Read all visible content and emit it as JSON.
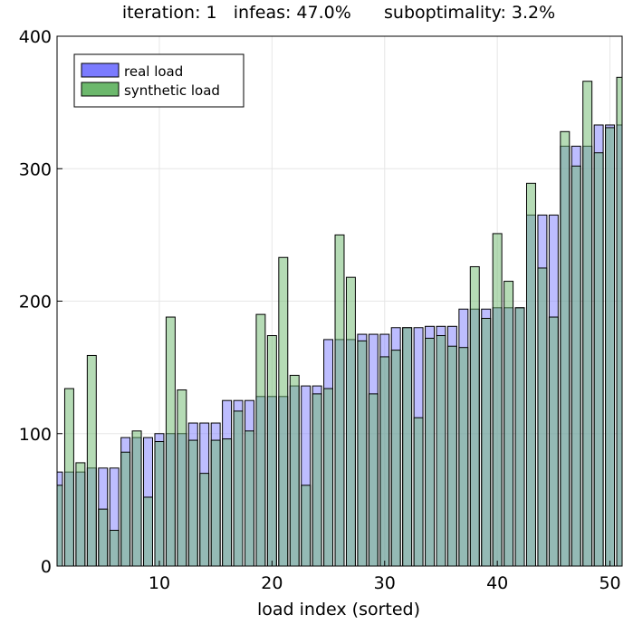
{
  "chart_data": {
    "type": "bar",
    "title": "iteration: 1   infeas: 47.0%      suboptimality: 3.2%",
    "xlabel": "load index (sorted)",
    "ylabel": "",
    "xlim": [
      1,
      51
    ],
    "ylim": [
      0,
      400
    ],
    "xticks": [
      10,
      20,
      30,
      40,
      50
    ],
    "yticks": [
      0,
      100,
      200,
      300,
      400
    ],
    "grid": true,
    "legend_position": "top-left",
    "series": [
      {
        "name": "real load",
        "color": "#7b7bff",
        "values": [
          71,
          71,
          71,
          74,
          74,
          74,
          97,
          97,
          97,
          100,
          100,
          100,
          108,
          108,
          108,
          125,
          125,
          125,
          128,
          128,
          128,
          136,
          136,
          136,
          171,
          171,
          171,
          175,
          175,
          175,
          180,
          180,
          180,
          181,
          181,
          181,
          194,
          194,
          194,
          195,
          195,
          195,
          265,
          265,
          265,
          317,
          317,
          317,
          333,
          333,
          333
        ]
      },
      {
        "name": "synthetic load",
        "color": "#6cb86c",
        "values": [
          61,
          134,
          78,
          159,
          43,
          27,
          86,
          102,
          52,
          94,
          188,
          133,
          95,
          70,
          95,
          96,
          117,
          102,
          190,
          174,
          233,
          144,
          61,
          130,
          134,
          250,
          218,
          170,
          130,
          158,
          163,
          180,
          112,
          172,
          174,
          166,
          165,
          226,
          187,
          251,
          215,
          195,
          289,
          225,
          188,
          328,
          302,
          366,
          312,
          331,
          369
        ]
      }
    ]
  }
}
